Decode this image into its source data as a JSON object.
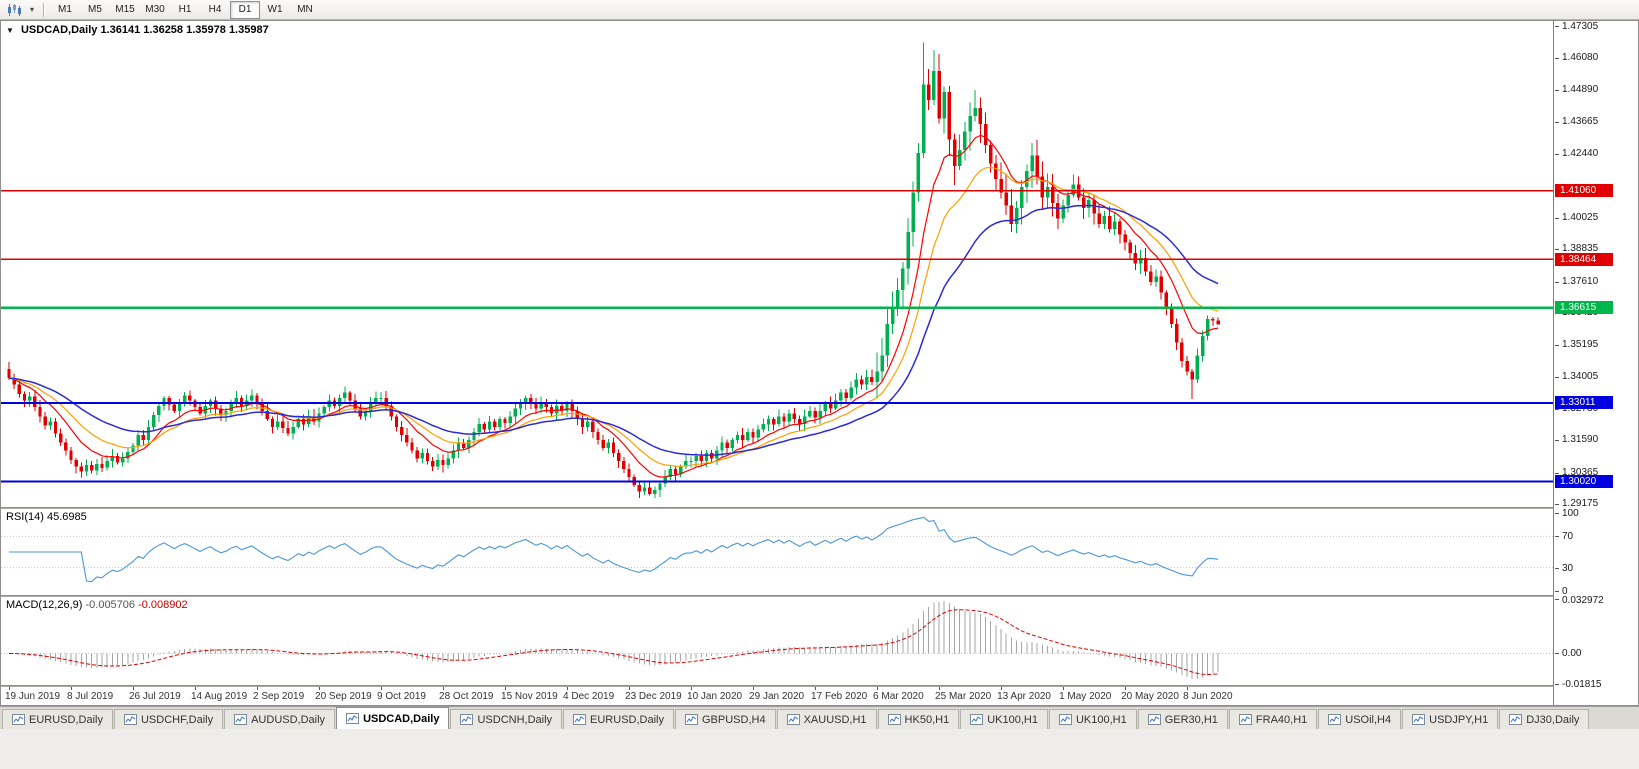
{
  "toolbar": {
    "chart_type_tooltip": "Candlesticks",
    "timeframes": [
      "M1",
      "M5",
      "M15",
      "M30",
      "H1",
      "H4",
      "D1",
      "W1",
      "MN"
    ],
    "active_timeframe": "D1"
  },
  "chart": {
    "title": {
      "symbol": "USDCAD,Daily",
      "open": "1.36141",
      "high": "1.36258",
      "low": "1.35978",
      "close": "1.35987"
    }
  },
  "chart_data": {
    "type": "candlestick",
    "symbol": "USDCAD",
    "timeframe": "Daily",
    "grid": false,
    "colors": {
      "up": "#00b050",
      "down": "#e10000",
      "background": "#ffffff"
    },
    "x_labels": [
      "19 Jun 2019",
      "8 Jul 2019",
      "26 Jul 2019",
      "14 Aug 2019",
      "2 Sep 2019",
      "20 Sep 2019",
      "9 Oct 2019",
      "28 Oct 2019",
      "15 Nov 2019",
      "4 Dec 2019",
      "23 Dec 2019",
      "10 Jan 2020",
      "29 Jan 2020",
      "17 Feb 2020",
      "6 Mar 2020",
      "25 Mar 2020",
      "13 Apr 2020",
      "1 May 2020",
      "20 May 2020",
      "8 Jun 2020"
    ],
    "candles_per_label": 12,
    "first_open": 1.343,
    "closes": [
      1.3395,
      1.337,
      1.3335,
      1.331,
      1.3325,
      1.3285,
      1.325,
      1.3215,
      1.323,
      1.3185,
      1.315,
      1.312,
      1.3085,
      1.306,
      1.304,
      1.3065,
      1.3045,
      1.307,
      1.3055,
      1.308,
      1.31,
      1.3075,
      1.309,
      1.3115,
      1.314,
      1.318,
      1.316,
      1.321,
      1.3255,
      1.329,
      1.332,
      1.3295,
      1.327,
      1.3305,
      1.333,
      1.331,
      1.3285,
      1.326,
      1.329,
      1.331,
      1.328,
      1.3255,
      1.327,
      1.33,
      1.332,
      1.329,
      1.331,
      1.333,
      1.33,
      1.327,
      1.324,
      1.321,
      1.323,
      1.3205,
      1.3185,
      1.321,
      1.324,
      1.322,
      1.325,
      1.323,
      1.326,
      1.3285,
      1.331,
      1.329,
      1.332,
      1.334,
      1.331,
      1.328,
      1.325,
      1.327,
      1.33,
      1.332,
      1.332,
      1.329,
      1.325,
      1.321,
      1.318,
      1.315,
      1.312,
      1.309,
      1.311,
      1.308,
      1.306,
      1.3085,
      1.3065,
      1.309,
      1.312,
      1.315,
      1.313,
      1.316,
      1.319,
      1.322,
      1.32,
      1.323,
      1.321,
      1.324,
      1.3225,
      1.325,
      1.328,
      1.33,
      1.332,
      1.33,
      1.328,
      1.33,
      1.3285,
      1.326,
      1.329,
      1.327,
      1.33,
      1.327,
      1.324,
      1.321,
      1.323,
      1.319,
      1.316,
      1.313,
      1.315,
      1.311,
      1.308,
      1.305,
      1.302,
      1.299,
      1.2965,
      1.298,
      1.2955,
      1.297,
      1.2995,
      1.302,
      1.305,
      1.303,
      1.306,
      1.308,
      1.308,
      1.31,
      1.308,
      1.311,
      1.309,
      1.312,
      1.315,
      1.313,
      1.316,
      1.318,
      1.316,
      1.319,
      1.317,
      1.32,
      1.322,
      1.324,
      1.322,
      1.325,
      1.323,
      1.326,
      1.324,
      1.322,
      1.325,
      1.327,
      1.3245,
      1.327,
      1.33,
      1.328,
      1.331,
      1.334,
      1.332,
      1.336,
      1.339,
      1.337,
      1.34,
      1.338,
      1.342,
      1.348,
      1.36,
      1.366,
      1.373,
      1.381,
      1.395,
      1.41,
      1.425,
      1.451,
      1.445,
      1.456,
      1.438,
      1.448,
      1.43,
      1.42,
      1.426,
      1.433,
      1.439,
      1.442,
      1.436,
      1.428,
      1.421,
      1.415,
      1.41,
      1.405,
      1.398,
      1.404,
      1.412,
      1.418,
      1.424,
      1.416,
      1.408,
      1.412,
      1.406,
      1.4,
      1.405,
      1.409,
      1.413,
      1.408,
      1.404,
      1.407,
      1.402,
      1.398,
      1.401,
      1.396,
      1.399,
      1.394,
      1.391,
      1.387,
      1.383,
      1.385,
      1.38,
      1.376,
      1.378,
      1.372,
      1.366,
      1.36,
      1.353,
      1.346,
      1.342,
      1.339,
      1.348,
      1.3555,
      1.362,
      1.3614,
      1.3599
    ],
    "special_highs": {
      "177": 1.4669,
      "179": 1.464,
      "234": 1.36258
    },
    "special_lows": {
      "124": 1.2949,
      "229": 1.3316,
      "234": 1.35978
    },
    "price_axis": {
      "min": 1.2906,
      "max": 1.475,
      "ticks": [
        1.47305,
        1.4608,
        1.4489,
        1.43665,
        1.4244,
        1.40025,
        1.38835,
        1.3761,
        1.3642,
        1.35195,
        1.34005,
        1.3278,
        1.3159,
        1.30365,
        1.29175
      ]
    },
    "moving_averages": [
      {
        "name": "ma-fast",
        "period": 10,
        "color": "#ff0000",
        "width": 1.2
      },
      {
        "name": "ma-medium",
        "period": 18,
        "color": "#ff9f00",
        "width": 1.2
      },
      {
        "name": "ma-slow",
        "period": 34,
        "color": "#2b2bd4",
        "width": 1.5
      }
    ],
    "hlines": [
      {
        "price": 1.4106,
        "label": "1.41060",
        "color": "#e00000",
        "width": 1.5
      },
      {
        "price": 1.38464,
        "label": "1.38464",
        "color": "#e00000",
        "width": 1.5
      },
      {
        "price": 1.36615,
        "label": "1.36615",
        "color": "#00b64a",
        "width": 2.5
      },
      {
        "price": 1.33011,
        "label": "1.33011",
        "color": "#0000e0",
        "width": 2
      },
      {
        "price": 1.3002,
        "label": "1.30020",
        "color": "#0000e0",
        "width": 2
      }
    ],
    "rsi": {
      "label": "RSI(14)",
      "value": "45.6985",
      "period": 14,
      "color": "#4d96d9",
      "levels": [
        100,
        70,
        30,
        0
      ],
      "dotted_levels": [
        70,
        30
      ],
      "level_color": "#c0c0c0"
    },
    "macd": {
      "label": "MACD(12,26,9)",
      "value_main": "-0.005706",
      "value_signal": "-0.008902",
      "fast": 12,
      "slow": 26,
      "signal": 9,
      "bar_color": "#a6a6a6",
      "signal_color": "#e10000",
      "scale_min": -0.019,
      "scale_max": 0.034,
      "ticks": [
        {
          "v": 0.032972,
          "label": "0.032972"
        },
        {
          "v": 0,
          "label": "0.00"
        },
        {
          "v": -0.01815,
          "label": "-0.01815"
        }
      ]
    }
  },
  "tabs": {
    "active_index": 3,
    "items": [
      "EURUSD,Daily",
      "USDCHF,Daily",
      "AUDUSD,Daily",
      "USDCAD,Daily",
      "USDCNH,Daily",
      "EURUSD,Daily",
      "GBPUSD,H4",
      "XAUUSD,H1",
      "HK50,H1",
      "UK100,H1",
      "UK100,H1",
      "GER30,H1",
      "FRA40,H1",
      "USOil,H4",
      "USDJPY,H1",
      "DJ30,Daily"
    ]
  }
}
